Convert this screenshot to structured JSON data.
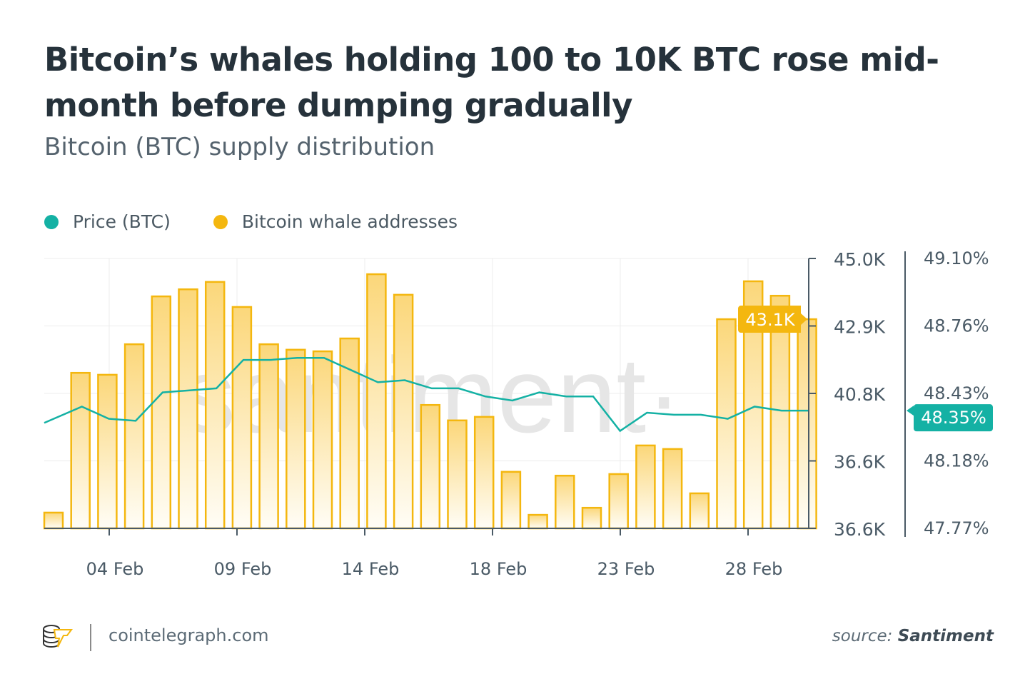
{
  "title": "Bitcoin’s whales holding 100 to 10K BTC rose mid-month before dumping gradually",
  "subtitle": "Bitcoin (BTC) supply distribution",
  "footer": {
    "site": "cointelegraph.com",
    "source_label": "source:",
    "source_name": "Santiment"
  },
  "watermark": "·santiment·",
  "colors": {
    "bars": "#f4b70f",
    "line": "#14b1a4",
    "axis": "#4a5a66"
  },
  "chart_data": {
    "type": "bar+line",
    "legend": [
      {
        "name": "Price (BTC)",
        "color": "#14b1a4"
      },
      {
        "name": "Bitcoin whale addresses",
        "color": "#f4b70f"
      }
    ],
    "legend_position": "top-left",
    "x_tick_labels": [
      "04 Feb",
      "09 Feb",
      "14 Feb",
      "18 Feb",
      "23 Feb",
      "28 Feb"
    ],
    "left_axis": {
      "ticks": [
        "45.0K",
        "42.9K",
        "40.8K",
        "36.6K",
        "36.6K"
      ],
      "range": [
        36.6,
        45.0
      ],
      "unit": "K"
    },
    "right_axis": {
      "ticks": [
        "49.10%",
        "48.76%",
        "48.43%",
        "48.18%",
        "47.77%"
      ],
      "range": [
        47.77,
        49.1
      ],
      "unit": "%"
    },
    "bars": {
      "name": "Bitcoin whale addresses",
      "values": [
        37.09,
        41.44,
        41.38,
        42.33,
        43.82,
        44.04,
        44.27,
        43.49,
        42.33,
        42.16,
        42.11,
        42.51,
        44.51,
        43.87,
        40.44,
        39.96,
        40.07,
        38.36,
        37.02,
        38.24,
        37.24,
        38.29,
        39.18,
        39.07,
        37.69,
        43.11,
        44.29,
        43.84,
        43.11
      ]
    },
    "line": {
      "name": "Price (BTC)",
      "values": [
        48.29,
        48.37,
        48.31,
        48.3,
        48.44,
        48.45,
        48.46,
        48.6,
        48.6,
        48.61,
        48.61,
        48.55,
        48.49,
        48.5,
        48.46,
        48.46,
        48.42,
        48.4,
        48.44,
        48.42,
        48.42,
        48.25,
        48.34,
        48.33,
        48.33,
        48.31,
        48.37,
        48.35,
        48.35
      ]
    },
    "current_labels": {
      "bars": "43.1K",
      "line": "48.35%"
    },
    "grid": true
  }
}
